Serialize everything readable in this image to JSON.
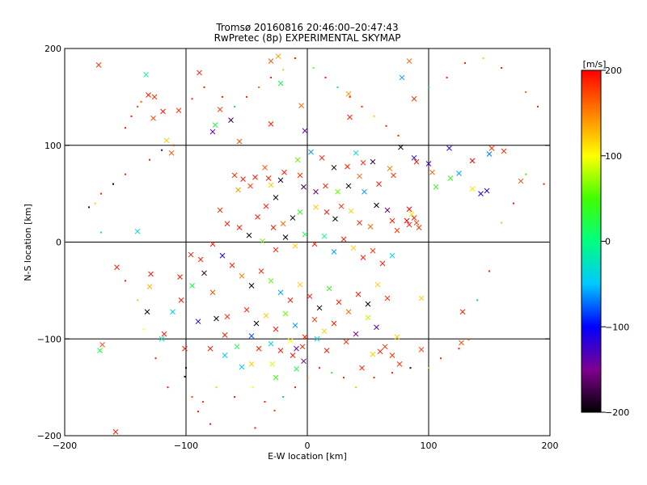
{
  "chart_data": {
    "type": "scatter",
    "title": "Tromsø 20160816 20:46:00–20:47:43",
    "subtitle": "RwPretec (8p) EXPERIMENTAL SKYMAP",
    "xlabel": "E-W location [km]",
    "ylabel": "N-S location [km]",
    "xlim": [
      -200,
      200
    ],
    "ylim": [
      -200,
      200
    ],
    "xticks": [
      -200,
      -100,
      0,
      100,
      200
    ],
    "yticks": [
      -200,
      -100,
      0,
      100,
      200
    ],
    "xtick_labels": [
      "−200",
      "−100",
      "0",
      "100",
      "200"
    ],
    "ytick_labels": [
      "−200",
      "−100",
      "0",
      "100",
      "200"
    ],
    "grid": true,
    "markers": {
      "large": "cross",
      "small": "dot"
    },
    "colorbar": {
      "label": "[m/s]",
      "range": [
        -200,
        200
      ],
      "ticks": [
        -200,
        -100,
        0,
        100,
        200
      ],
      "tick_labels": [
        "−200",
        "−100",
        "0",
        "100",
        "200"
      ]
    },
    "points": [
      [
        -172,
        183,
        180,
        1
      ],
      [
        -133,
        173,
        -10,
        1
      ],
      [
        -131,
        152,
        190,
        1
      ],
      [
        -126,
        150,
        180,
        1
      ],
      [
        -119,
        135,
        190,
        1
      ],
      [
        -127,
        128,
        170,
        1
      ],
      [
        -106,
        136,
        180,
        1
      ],
      [
        -116,
        105,
        120,
        1
      ],
      [
        -112,
        92,
        170,
        1
      ],
      [
        -89,
        175,
        190,
        1
      ],
      [
        -72,
        137,
        180,
        1
      ],
      [
        -76,
        121,
        20,
        1
      ],
      [
        -78,
        114,
        -140,
        1
      ],
      [
        -63,
        126,
        -180,
        1
      ],
      [
        -56,
        104,
        170,
        1
      ],
      [
        -30,
        122,
        190,
        1
      ],
      [
        -22,
        164,
        20,
        1
      ],
      [
        -30,
        187,
        170,
        1
      ],
      [
        -24,
        192,
        140,
        1
      ],
      [
        -5,
        141,
        160,
        1
      ],
      [
        -2,
        115,
        -140,
        1
      ],
      [
        34,
        153,
        140,
        1
      ],
      [
        35,
        129,
        190,
        1
      ],
      [
        84,
        187,
        160,
        1
      ],
      [
        78,
        170,
        -60,
        1
      ],
      [
        88,
        148,
        180,
        1
      ],
      [
        77,
        98,
        -190,
        1
      ],
      [
        88,
        87,
        -110,
        1
      ],
      [
        90,
        83,
        190,
        1
      ],
      [
        100,
        81,
        -130,
        1
      ],
      [
        103,
        72,
        160,
        1
      ],
      [
        117,
        97,
        -120,
        1
      ],
      [
        125,
        71,
        -60,
        1
      ],
      [
        136,
        84,
        200,
        1
      ],
      [
        152,
        97,
        180,
        1
      ],
      [
        150,
        91,
        -70,
        1
      ],
      [
        162,
        94,
        190,
        1
      ],
      [
        176,
        63,
        170,
        1
      ],
      [
        136,
        55,
        110,
        1
      ],
      [
        143,
        50,
        -110,
        1
      ],
      [
        148,
        53,
        -120,
        1
      ],
      [
        118,
        66,
        40,
        1
      ],
      [
        106,
        57,
        40,
        1
      ],
      [
        84,
        34,
        200,
        1
      ],
      [
        88,
        25,
        190,
        1
      ],
      [
        90,
        20,
        180,
        1
      ],
      [
        84,
        18,
        190,
        1
      ],
      [
        82,
        22,
        200,
        1
      ],
      [
        86,
        29,
        110,
        1
      ],
      [
        92,
        15,
        180,
        1
      ],
      [
        -180,
        36,
        -180,
        0
      ],
      [
        -140,
        11,
        -40,
        1
      ],
      [
        -157,
        -26,
        190,
        1
      ],
      [
        -129,
        -33,
        190,
        1
      ],
      [
        -130,
        -46,
        130,
        1
      ],
      [
        -132,
        -72,
        -200,
        1
      ],
      [
        -111,
        -72,
        -40,
        1
      ],
      [
        -96,
        -13,
        190,
        1
      ],
      [
        -105,
        -36,
        190,
        1
      ],
      [
        -85,
        -32,
        -190,
        1
      ],
      [
        -90,
        -82,
        -110,
        1
      ],
      [
        -78,
        -52,
        170,
        1
      ],
      [
        -75,
        -79,
        -190,
        1
      ],
      [
        -66,
        -77,
        190,
        1
      ],
      [
        -68,
        -117,
        -40,
        1
      ],
      [
        -46,
        -97,
        -80,
        1
      ],
      [
        -46,
        -126,
        120,
        1
      ],
      [
        -29,
        -126,
        90,
        1
      ],
      [
        -12,
        -117,
        190,
        1
      ],
      [
        -9,
        -110,
        -140,
        1
      ],
      [
        -3,
        -123,
        -160,
        1
      ],
      [
        -9,
        -131,
        20,
        1
      ],
      [
        -26,
        -140,
        50,
        1
      ],
      [
        -54,
        -129,
        -50,
        1
      ],
      [
        -80,
        -110,
        190,
        1
      ],
      [
        -101,
        -110,
        190,
        1
      ],
      [
        -169,
        -106,
        170,
        1
      ],
      [
        -171,
        -112,
        20,
        1
      ],
      [
        -158,
        -196,
        190,
        1
      ],
      [
        -101,
        -139,
        -190,
        0
      ],
      [
        -86,
        -165,
        180,
        0
      ],
      [
        -80,
        -188,
        190,
        0
      ],
      [
        -43,
        -192,
        190,
        0
      ],
      [
        -27,
        -174,
        180,
        0
      ],
      [
        45,
        -130,
        190,
        1
      ],
      [
        60,
        -113,
        190,
        1
      ],
      [
        64,
        -108,
        180,
        1
      ],
      [
        70,
        -117,
        180,
        1
      ],
      [
        74,
        -98,
        120,
        1
      ],
      [
        76,
        -126,
        180,
        1
      ],
      [
        57,
        -88,
        -140,
        1
      ],
      [
        50,
        -78,
        80,
        1
      ],
      [
        40,
        -95,
        -150,
        1
      ],
      [
        32,
        -103,
        180,
        1
      ],
      [
        54,
        -116,
        120,
        1
      ],
      [
        94,
        -111,
        180,
        1
      ],
      [
        128,
        -72,
        190,
        1
      ],
      [
        127,
        -104,
        170,
        1
      ],
      [
        133,
        -101,
        150,
        0
      ],
      [
        94,
        -58,
        120,
        1
      ],
      [
        -60,
        69,
        180,
        1
      ],
      [
        -53,
        65,
        190,
        1
      ],
      [
        -57,
        54,
        140,
        1
      ],
      [
        -47,
        58,
        180,
        1
      ],
      [
        -43,
        67,
        190,
        1
      ],
      [
        -35,
        77,
        170,
        1
      ],
      [
        -32,
        66,
        190,
        1
      ],
      [
        -30,
        59,
        120,
        1
      ],
      [
        -22,
        64,
        -190,
        1
      ],
      [
        -19,
        72,
        190,
        1
      ],
      [
        -8,
        85,
        60,
        1
      ],
      [
        -6,
        69,
        180,
        1
      ],
      [
        -3,
        57,
        -180,
        1
      ],
      [
        7,
        52,
        -160,
        1
      ],
      [
        15,
        58,
        190,
        1
      ],
      [
        25,
        52,
        60,
        1
      ],
      [
        34,
        58,
        -200,
        1
      ],
      [
        43,
        68,
        160,
        1
      ],
      [
        47,
        52,
        -60,
        1
      ],
      [
        59,
        60,
        190,
        1
      ],
      [
        68,
        76,
        150,
        1
      ],
      [
        71,
        69,
        180,
        1
      ],
      [
        54,
        83,
        -180,
        1
      ],
      [
        46,
        82,
        190,
        1
      ],
      [
        40,
        92,
        -30,
        1
      ],
      [
        33,
        78,
        190,
        1
      ],
      [
        22,
        77,
        -200,
        1
      ],
      [
        12,
        87,
        190,
        1
      ],
      [
        3,
        93,
        -60,
        1
      ],
      [
        -26,
        46,
        -190,
        1
      ],
      [
        -34,
        37,
        190,
        1
      ],
      [
        -41,
        26,
        190,
        1
      ],
      [
        -28,
        15,
        190,
        1
      ],
      [
        -20,
        19,
        160,
        1
      ],
      [
        -12,
        25,
        -200,
        1
      ],
      [
        -6,
        31,
        40,
        1
      ],
      [
        7,
        36,
        120,
        1
      ],
      [
        16,
        31,
        190,
        1
      ],
      [
        23,
        24,
        -200,
        1
      ],
      [
        28,
        37,
        180,
        1
      ],
      [
        36,
        32,
        120,
        1
      ],
      [
        43,
        20,
        190,
        1
      ],
      [
        52,
        16,
        160,
        1
      ],
      [
        57,
        38,
        -200,
        1
      ],
      [
        66,
        33,
        -160,
        1
      ],
      [
        70,
        22,
        190,
        1
      ],
      [
        74,
        12,
        180,
        1
      ],
      [
        -66,
        19,
        190,
        1
      ],
      [
        -72,
        33,
        180,
        1
      ],
      [
        -56,
        15,
        190,
        1
      ],
      [
        -48,
        7,
        -190,
        1
      ],
      [
        -37,
        1,
        60,
        1
      ],
      [
        -26,
        -8,
        190,
        1
      ],
      [
        -18,
        5,
        -200,
        1
      ],
      [
        -10,
        -4,
        120,
        1
      ],
      [
        -2,
        8,
        20,
        1
      ],
      [
        6,
        -2,
        190,
        1
      ],
      [
        14,
        6,
        0,
        1
      ],
      [
        22,
        -10,
        -60,
        1
      ],
      [
        30,
        3,
        190,
        1
      ],
      [
        38,
        -6,
        120,
        1
      ],
      [
        46,
        -16,
        190,
        1
      ],
      [
        54,
        -9,
        180,
        1
      ],
      [
        62,
        -22,
        190,
        1
      ],
      [
        70,
        -14,
        -40,
        1
      ],
      [
        -78,
        -2,
        190,
        1
      ],
      [
        -70,
        -14,
        -110,
        1
      ],
      [
        -62,
        -24,
        190,
        1
      ],
      [
        -54,
        -35,
        150,
        1
      ],
      [
        -46,
        -45,
        -200,
        1
      ],
      [
        -38,
        -30,
        190,
        1
      ],
      [
        -30,
        -40,
        60,
        1
      ],
      [
        -22,
        -52,
        -60,
        1
      ],
      [
        -14,
        -60,
        190,
        1
      ],
      [
        -6,
        -44,
        120,
        1
      ],
      [
        2,
        -56,
        190,
        1
      ],
      [
        10,
        -68,
        -200,
        1
      ],
      [
        18,
        -48,
        40,
        1
      ],
      [
        26,
        -62,
        190,
        1
      ],
      [
        34,
        -72,
        160,
        1
      ],
      [
        42,
        -54,
        190,
        1
      ],
      [
        50,
        -64,
        -200,
        1
      ],
      [
        58,
        -44,
        120,
        1
      ],
      [
        66,
        -58,
        190,
        1
      ],
      [
        -50,
        -70,
        190,
        1
      ],
      [
        -42,
        -84,
        -200,
        1
      ],
      [
        -34,
        -76,
        120,
        1
      ],
      [
        -26,
        -90,
        190,
        1
      ],
      [
        -18,
        -74,
        60,
        1
      ],
      [
        -10,
        -86,
        -60,
        1
      ],
      [
        -2,
        -98,
        190,
        1
      ],
      [
        6,
        -80,
        180,
        1
      ],
      [
        14,
        -92,
        120,
        1
      ],
      [
        22,
        -84,
        190,
        1
      ],
      [
        -88,
        -18,
        190,
        1
      ],
      [
        -95,
        -45,
        20,
        1
      ],
      [
        -104,
        -60,
        190,
        1
      ],
      [
        -118,
        -95,
        190,
        1
      ],
      [
        -120,
        -100,
        -20,
        1
      ],
      [
        -68,
        -96,
        190,
        1
      ],
      [
        -58,
        -108,
        20,
        1
      ],
      [
        -40,
        -110,
        190,
        1
      ],
      [
        -30,
        -105,
        -40,
        1
      ],
      [
        -22,
        -112,
        190,
        1
      ],
      [
        -14,
        -102,
        100,
        1
      ],
      [
        -4,
        -108,
        190,
        1
      ],
      [
        8,
        -100,
        -40,
        1
      ],
      [
        16,
        -112,
        190,
        1
      ],
      [
        -170,
        10,
        -20,
        0
      ],
      [
        -150,
        -40,
        190,
        0
      ],
      [
        -140,
        -60,
        120,
        0
      ],
      [
        -135,
        -90,
        100,
        0
      ],
      [
        -125,
        -120,
        190,
        0
      ],
      [
        -115,
        -150,
        190,
        0
      ],
      [
        -100,
        -130,
        -200,
        0
      ],
      [
        -95,
        -160,
        180,
        0
      ],
      [
        -90,
        -175,
        190,
        0
      ],
      [
        -75,
        -150,
        120,
        0
      ],
      [
        -60,
        -160,
        190,
        0
      ],
      [
        -45,
        -150,
        100,
        0
      ],
      [
        -35,
        -165,
        190,
        0
      ],
      [
        -20,
        -160,
        -40,
        0
      ],
      [
        -10,
        -150,
        190,
        0
      ],
      [
        0,
        -140,
        160,
        0
      ],
      [
        10,
        -130,
        190,
        0
      ],
      [
        20,
        -135,
        40,
        0
      ],
      [
        30,
        -140,
        190,
        0
      ],
      [
        40,
        -150,
        120,
        0
      ],
      [
        55,
        -140,
        190,
        0
      ],
      [
        70,
        -135,
        190,
        0
      ],
      [
        85,
        -130,
        -190,
        0
      ],
      [
        100,
        -130,
        120,
        0
      ],
      [
        110,
        -120,
        190,
        0
      ],
      [
        125,
        -110,
        190,
        0
      ],
      [
        140,
        -60,
        -40,
        0
      ],
      [
        150,
        -30,
        190,
        0
      ],
      [
        160,
        20,
        120,
        0
      ],
      [
        170,
        40,
        190,
        0
      ],
      [
        180,
        70,
        60,
        0
      ],
      [
        195,
        60,
        190,
        0
      ],
      [
        190,
        140,
        190,
        0
      ],
      [
        180,
        155,
        160,
        0
      ],
      [
        160,
        180,
        190,
        0
      ],
      [
        145,
        190,
        120,
        0
      ],
      [
        130,
        185,
        190,
        0
      ],
      [
        115,
        170,
        190,
        0
      ],
      [
        100,
        160,
        -40,
        0
      ],
      [
        -150,
        118,
        190,
        0
      ],
      [
        -145,
        130,
        190,
        0
      ],
      [
        -140,
        140,
        170,
        0
      ],
      [
        -137,
        145,
        160,
        0
      ],
      [
        -95,
        148,
        190,
        0
      ],
      [
        -85,
        160,
        190,
        0
      ],
      [
        -70,
        150,
        190,
        0
      ],
      [
        -60,
        140,
        -40,
        0
      ],
      [
        -50,
        150,
        190,
        0
      ],
      [
        -40,
        160,
        160,
        0
      ],
      [
        -30,
        170,
        190,
        0
      ],
      [
        -20,
        178,
        120,
        0
      ],
      [
        -10,
        190,
        190,
        0
      ],
      [
        5,
        180,
        60,
        0
      ],
      [
        15,
        170,
        190,
        0
      ],
      [
        25,
        160,
        -20,
        0
      ],
      [
        35,
        150,
        190,
        0
      ],
      [
        45,
        140,
        190,
        0
      ],
      [
        55,
        130,
        120,
        0
      ],
      [
        65,
        120,
        190,
        0
      ],
      [
        75,
        110,
        190,
        0
      ],
      [
        -110,
        100,
        190,
        0
      ],
      [
        -120,
        95,
        -120,
        0
      ],
      [
        -130,
        85,
        190,
        0
      ],
      [
        -150,
        70,
        190,
        0
      ],
      [
        -160,
        60,
        -200,
        0
      ],
      [
        -170,
        50,
        190,
        0
      ],
      [
        -175,
        40,
        120,
        0
      ]
    ]
  }
}
